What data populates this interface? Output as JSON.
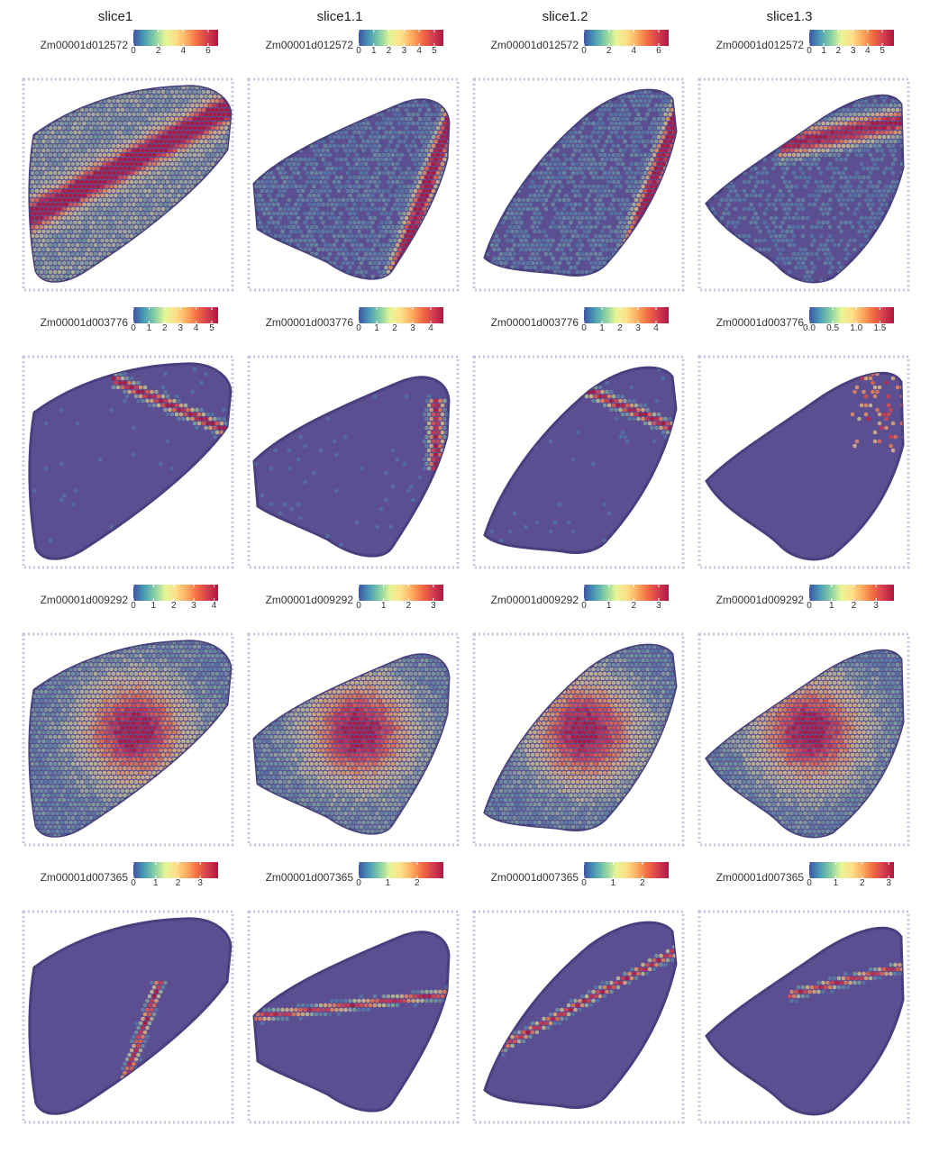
{
  "column_titles": [
    "slice1",
    "slice1.1",
    "slice1.2",
    "slice1.3"
  ],
  "colorscale": {
    "name": "Spectral (reversed)",
    "colors": [
      "#3e54a4",
      "#4a9bb6",
      "#86cfa5",
      "#e6f598",
      "#fee08b",
      "#fdae61",
      "#f46d43",
      "#d53e4f",
      "#b0173f"
    ]
  },
  "tissue_color": "#5b4f92",
  "rows": [
    {
      "gene": "Zm00001d012572",
      "panels": [
        {
          "slice": "slice1",
          "ticks": [
            "0",
            "2",
            "4",
            "6"
          ],
          "max": 6.8,
          "pattern": "outer-band"
        },
        {
          "slice": "slice1.1",
          "ticks": [
            "0",
            "1",
            "2",
            "3",
            "4",
            "5"
          ],
          "max": 5.6,
          "pattern": "right-streak"
        },
        {
          "slice": "slice1.2",
          "ticks": [
            "0",
            "2",
            "4",
            "6"
          ],
          "max": 6.8,
          "pattern": "right-streak"
        },
        {
          "slice": "slice1.3",
          "ticks": [
            "0",
            "1",
            "2",
            "3",
            "4",
            "5"
          ],
          "max": 5.8,
          "pattern": "upper-band"
        }
      ]
    },
    {
      "gene": "Zm00001d003776",
      "panels": [
        {
          "slice": "slice1",
          "ticks": [
            "0",
            "1",
            "2",
            "3",
            "4",
            "5"
          ],
          "max": 5.4,
          "pattern": "top-right-band"
        },
        {
          "slice": "slice1.1",
          "ticks": [
            "0",
            "1",
            "2",
            "3",
            "4"
          ],
          "max": 4.7,
          "pattern": "right-edge"
        },
        {
          "slice": "slice1.2",
          "ticks": [
            "0",
            "1",
            "2",
            "3",
            "4"
          ],
          "max": 4.7,
          "pattern": "top-right-band"
        },
        {
          "slice": "slice1.3",
          "ticks": [
            "0.0",
            "0.5",
            "1.0",
            "1.5"
          ],
          "max": 1.8,
          "pattern": "sparse-right"
        }
      ]
    },
    {
      "gene": "Zm00001d009292",
      "panels": [
        {
          "slice": "slice1",
          "ticks": [
            "0",
            "1",
            "2",
            "3",
            "4"
          ],
          "max": 4.2,
          "pattern": "center-blob"
        },
        {
          "slice": "slice1.1",
          "ticks": [
            "0",
            "1",
            "2",
            "3"
          ],
          "max": 3.4,
          "pattern": "center-blob"
        },
        {
          "slice": "slice1.2",
          "ticks": [
            "0",
            "1",
            "2",
            "3"
          ],
          "max": 3.4,
          "pattern": "center-blob"
        },
        {
          "slice": "slice1.3",
          "ticks": [
            "0",
            "1",
            "2",
            "3"
          ],
          "max": 3.8,
          "pattern": "center-blob"
        }
      ]
    },
    {
      "gene": "Zm00001d007365",
      "panels": [
        {
          "slice": "slice1",
          "ticks": [
            "0",
            "1",
            "2",
            "3"
          ],
          "max": 3.8,
          "pattern": "curve-line"
        },
        {
          "slice": "slice1.1",
          "ticks": [
            "0",
            "1",
            "2"
          ],
          "max": 2.9,
          "pattern": "horizontal-line"
        },
        {
          "slice": "slice1.2",
          "ticks": [
            "0",
            "1",
            "2"
          ],
          "max": 2.9,
          "pattern": "diagonal-line"
        },
        {
          "slice": "slice1.3",
          "ticks": [
            "0",
            "1",
            "2",
            "3"
          ],
          "max": 3.2,
          "pattern": "upper-right-line"
        }
      ]
    }
  ]
}
